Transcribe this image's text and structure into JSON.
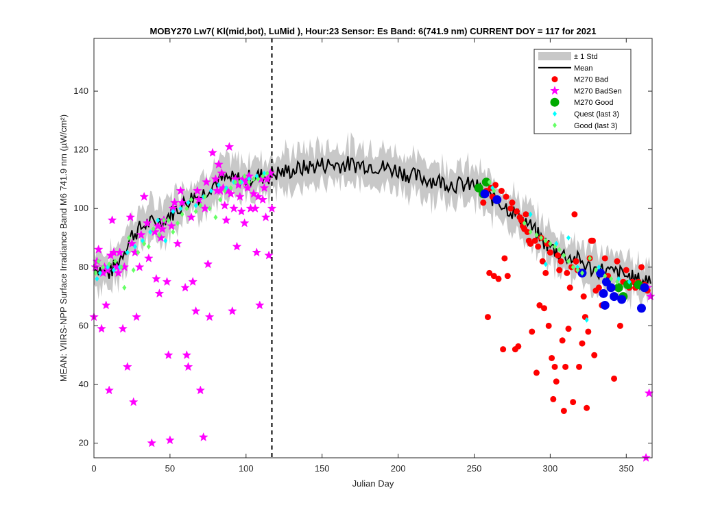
{
  "chart_data": {
    "type": "scatter",
    "title": "MOBY270   Lw7( Kl(mid,bot), LuMid ),   Hour:23 Sensor: Es Band: 6(741.9 nm)   CURRENT DOY = 117 for 2021",
    "xlabel": "Julian Day",
    "ylabel": "MEAN: VIIRS-NPP Surface Irradiance Band M6 741.9 nm (µW/cm²)",
    "xlim": [
      0,
      367
    ],
    "ylim": [
      15,
      158
    ],
    "xticks": [
      0,
      50,
      100,
      150,
      200,
      250,
      300,
      350
    ],
    "yticks": [
      20,
      40,
      60,
      80,
      100,
      120,
      140
    ],
    "current_doy": 117,
    "grid": false,
    "legend_position": "top-right",
    "colors": {
      "std": "#c8c8c8",
      "mean": "#000000",
      "bad": "#ff0000",
      "badsen": "#ff00ff",
      "good": "#00aa00",
      "quest": "#00ffff",
      "good3": "#66ff66",
      "blue": "#0000ee"
    },
    "mean_anchors": [
      [
        0,
        81
      ],
      [
        5,
        79
      ],
      [
        10,
        78
      ],
      [
        15,
        81
      ],
      [
        20,
        86
      ],
      [
        25,
        91
      ],
      [
        30,
        93
      ],
      [
        35,
        95
      ],
      [
        40,
        95
      ],
      [
        45,
        96
      ],
      [
        50,
        98
      ],
      [
        55,
        100
      ],
      [
        60,
        102
      ],
      [
        65,
        104
      ],
      [
        70,
        104
      ],
      [
        75,
        107
      ],
      [
        80,
        109
      ],
      [
        85,
        110
      ],
      [
        90,
        110
      ],
      [
        95,
        110
      ],
      [
        100,
        110
      ],
      [
        105,
        111
      ],
      [
        110,
        111
      ],
      [
        115,
        111
      ],
      [
        117,
        112
      ],
      [
        120,
        112
      ],
      [
        130,
        113
      ],
      [
        140,
        114
      ],
      [
        150,
        115
      ],
      [
        160,
        115
      ],
      [
        170,
        115
      ],
      [
        180,
        115
      ],
      [
        190,
        114
      ],
      [
        200,
        113
      ],
      [
        210,
        111
      ],
      [
        220,
        110
      ],
      [
        230,
        109
      ],
      [
        240,
        108
      ],
      [
        250,
        108
      ],
      [
        255,
        106
      ],
      [
        260,
        104
      ],
      [
        265,
        103
      ],
      [
        270,
        101
      ],
      [
        275,
        99
      ],
      [
        280,
        97
      ],
      [
        285,
        95
      ],
      [
        290,
        92
      ],
      [
        295,
        89
      ],
      [
        300,
        87
      ],
      [
        305,
        85
      ],
      [
        310,
        84
      ],
      [
        315,
        83
      ],
      [
        320,
        82
      ],
      [
        325,
        80
      ],
      [
        330,
        79
      ],
      [
        335,
        79
      ],
      [
        340,
        78
      ],
      [
        345,
        78
      ],
      [
        350,
        77
      ],
      [
        355,
        76
      ],
      [
        360,
        75
      ],
      [
        365,
        76
      ]
    ],
    "std_width": 6,
    "legend": [
      {
        "label": "± 1 Std",
        "kind": "patch"
      },
      {
        "label": "Mean",
        "kind": "line"
      },
      {
        "label": "M270 Bad",
        "kind": "bad"
      },
      {
        "label": "M270 BadSen",
        "kind": "badsen"
      },
      {
        "label": "M270 Good",
        "kind": "good"
      },
      {
        "label": "Quest (last 3)",
        "kind": "quest"
      },
      {
        "label": "Good (last 3)",
        "kind": "good3"
      }
    ],
    "series": [
      {
        "name": "M270 BadSen",
        "marker": "star",
        "x": [
          0,
          1,
          2,
          3,
          5,
          6,
          7,
          8,
          9,
          10,
          11,
          12,
          13,
          15,
          16,
          17,
          19,
          20,
          22,
          24,
          25,
          26,
          27,
          28,
          30,
          31,
          33,
          35,
          36,
          38,
          40,
          41,
          42,
          43,
          44,
          45,
          46,
          48,
          49,
          50,
          51,
          52,
          53,
          55,
          57,
          58,
          60,
          61,
          62,
          64,
          65,
          67,
          68,
          69,
          70,
          72,
          73,
          74,
          75,
          76,
          78,
          80,
          81,
          82,
          83,
          84,
          85,
          86,
          87,
          88,
          89,
          90,
          91,
          92,
          93,
          94,
          95,
          96,
          97,
          98,
          99,
          100,
          101,
          102,
          103,
          105,
          106,
          107,
          108,
          109,
          110,
          111,
          112,
          113,
          114,
          115,
          116,
          117,
          363,
          364,
          365,
          366
        ],
        "y": [
          63,
          80,
          82,
          86,
          59,
          78,
          80,
          67,
          79,
          38,
          84,
          96,
          85,
          80,
          78,
          85,
          59,
          80,
          46,
          97,
          88,
          34,
          85,
          63,
          80,
          91,
          104,
          95,
          83,
          20,
          92,
          76,
          94,
          71,
          90,
          93,
          96,
          75,
          50,
          21,
          94,
          100,
          102,
          88,
          106,
          102,
          73,
          50,
          46,
          97,
          75,
          65,
          106,
          103,
          38,
          22,
          100,
          109,
          81,
          63,
          119,
          110,
          106,
          115,
          106,
          112,
          107,
          101,
          96,
          106,
          121,
          105,
          65,
          100,
          110,
          87,
          108,
          104,
          99,
          110,
          95,
          109,
          107,
          111,
          100,
          105,
          100,
          85,
          104,
          67,
          110,
          103,
          107,
          97,
          110,
          84,
          112,
          100,
          15,
          73,
          37,
          70
        ]
      },
      {
        "name": "M270 Bad",
        "marker": "circle",
        "x": [
          256,
          258,
          259,
          260,
          261,
          262,
          263,
          264,
          266,
          268,
          269,
          270,
          271,
          272,
          274,
          275,
          277,
          278,
          279,
          280,
          281,
          282,
          283,
          284,
          285,
          286,
          287,
          288,
          290,
          291,
          292,
          293,
          294,
          295,
          296,
          297,
          298,
          299,
          300,
          301,
          302,
          303,
          304,
          305,
          306,
          307,
          308,
          309,
          310,
          311,
          312,
          313,
          314,
          315,
          316,
          317,
          318,
          319,
          320,
          321,
          322,
          323,
          324,
          325,
          326,
          327,
          328,
          329,
          330,
          332,
          334,
          336,
          338,
          340,
          342,
          344,
          346,
          348,
          350,
          352,
          354,
          356,
          358,
          360,
          362,
          364
        ],
        "y": [
          102,
          106,
          63,
          78,
          107,
          104,
          77,
          108,
          76,
          106,
          52,
          83,
          104,
          77,
          100,
          102,
          52,
          99,
          53,
          97,
          96,
          94,
          93,
          98,
          92,
          89,
          88,
          58,
          89,
          44,
          87,
          67,
          90,
          82,
          66,
          78,
          88,
          60,
          85,
          49,
          35,
          46,
          41,
          84,
          79,
          82,
          55,
          31,
          46,
          78,
          59,
          73,
          80,
          34,
          98,
          82,
          79,
          46,
          78,
          54,
          70,
          63,
          32,
          58,
          83,
          89,
          89,
          50,
          72,
          73,
          67,
          83,
          77,
          73,
          42,
          82,
          60,
          75,
          79,
          73,
          75,
          73,
          75,
          80,
          74,
          72
        ]
      },
      {
        "name": "M270 Good",
        "marker": "bigcircle",
        "x": [
          253,
          256,
          258,
          345,
          348,
          351,
          358
        ],
        "y": [
          107,
          105,
          109,
          73,
          70,
          74,
          74
        ]
      },
      {
        "name": "blue",
        "marker": "bigcircle",
        "x": [
          257,
          265,
          321,
          333,
          335,
          336,
          337,
          340,
          342,
          347,
          360,
          362
        ],
        "y": [
          105,
          103,
          78,
          78,
          71,
          67,
          75,
          73,
          70,
          69,
          66,
          73
        ]
      },
      {
        "name": "Quest (last 3)",
        "marker": "diamond",
        "x": [
          2,
          4,
          9,
          13,
          17,
          22,
          27,
          32,
          37,
          42,
          47,
          52,
          57,
          62,
          67,
          72,
          77,
          82,
          87,
          92,
          97,
          102,
          107,
          112,
          262,
          287,
          297,
          304,
          312,
          318,
          324,
          332,
          345,
          352
        ],
        "y": [
          76,
          78,
          80,
          79,
          80,
          85,
          87,
          89,
          92,
          96,
          89,
          99,
          100,
          102,
          101,
          104,
          106,
          108,
          107,
          109,
          109,
          110,
          111,
          112,
          107,
          98,
          81,
          88,
          90,
          80,
          62,
          80,
          76,
          75
        ]
      },
      {
        "name": "Good (last 3)",
        "marker": "diamond",
        "x": [
          1,
          3,
          6,
          10,
          14,
          18,
          20,
          23,
          26,
          29,
          33,
          36,
          39,
          43,
          46,
          49,
          52,
          55,
          58,
          61,
          64,
          67,
          70,
          73,
          76,
          80,
          83,
          86,
          90,
          93,
          96,
          99,
          102,
          105,
          108,
          111,
          114,
          260,
          263,
          283,
          287,
          291,
          294,
          297,
          300,
          303,
          306,
          309,
          312,
          315,
          318,
          321,
          326,
          330,
          336,
          340,
          344
        ],
        "y": [
          78,
          82,
          80,
          81,
          82,
          80,
          73,
          90,
          79,
          85,
          88,
          87,
          93,
          91,
          96,
          96,
          92,
          95,
          98,
          100,
          103,
          99,
          101,
          104,
          100,
          97,
          103,
          106,
          107,
          109,
          109,
          111,
          109,
          110,
          110,
          111,
          112,
          109,
          106,
          95,
          92,
          91,
          90,
          89,
          88,
          87,
          86,
          84,
          82,
          80,
          79,
          78,
          83,
          79,
          77,
          76,
          75
        ]
      }
    ]
  }
}
